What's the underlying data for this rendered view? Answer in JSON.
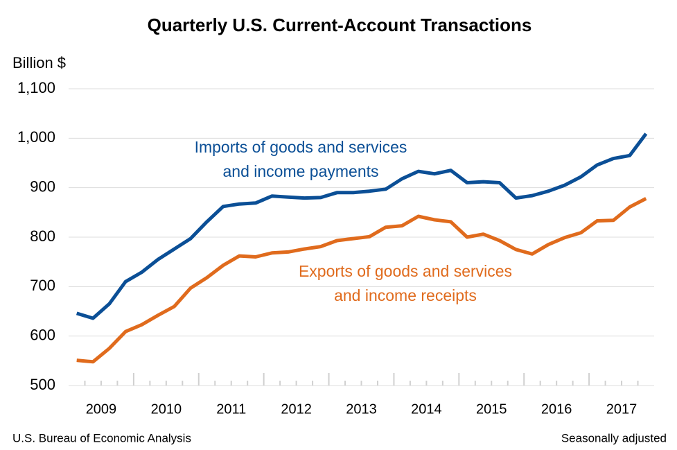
{
  "chart_data": {
    "type": "line",
    "title": "Quarterly U.S. Current-Account Transactions",
    "y_label": "Billion $",
    "source": "U.S. Bureau of Economic Analysis",
    "note": "Seasonally adjusted",
    "categories": [
      null,
      "2009",
      null,
      null,
      null,
      "2010",
      null,
      null,
      null,
      "2011",
      null,
      null,
      null,
      "2012",
      null,
      null,
      null,
      "2013",
      null,
      null,
      null,
      "2014",
      null,
      null,
      null,
      "2015",
      null,
      null,
      null,
      "2016",
      null,
      null,
      null,
      "2017",
      null,
      null
    ],
    "series": [
      {
        "label_lines": [
          "Imports of goods and services",
          "and income payments"
        ],
        "color": "#0b4f96",
        "values": [
          646,
          636,
          665,
          710,
          729,
          755,
          776,
          797,
          831,
          862,
          867,
          869,
          883,
          881,
          879,
          880,
          890,
          890,
          893,
          897,
          918,
          933,
          928,
          935,
          910,
          912,
          910,
          879,
          884,
          893,
          905,
          922,
          946,
          959,
          965,
          1009
        ]
      },
      {
        "label_lines": [
          "Exports of goods and services",
          "and income receipts"
        ],
        "color": "#e06b1d",
        "values": [
          551,
          548,
          575,
          609,
          623,
          642,
          660,
          697,
          718,
          743,
          762,
          760,
          768,
          770,
          776,
          781,
          793,
          797,
          801,
          820,
          823,
          842,
          835,
          831,
          800,
          806,
          793,
          775,
          766,
          785,
          799,
          809,
          833,
          834,
          861,
          878
        ]
      }
    ],
    "ylim": [
      500,
      1100
    ],
    "yticks": [
      500,
      600,
      700,
      800,
      900,
      {
        "value": 1000,
        "label": "1,000"
      },
      {
        "value": 1100,
        "label": "1,100"
      }
    ],
    "grid": true
  }
}
